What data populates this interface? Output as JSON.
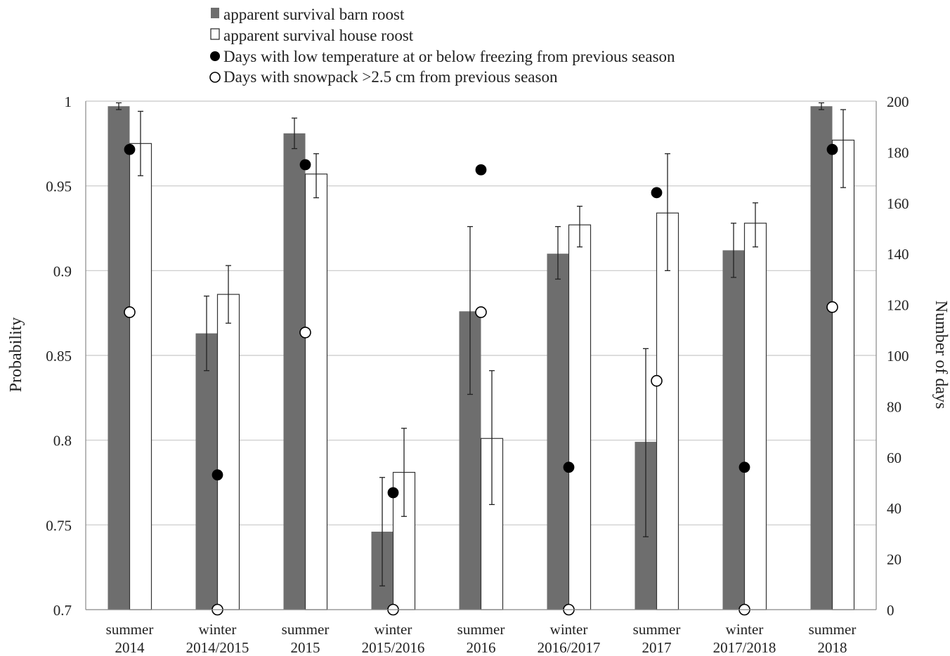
{
  "chart_data": {
    "type": "bar",
    "categories": [
      {
        "line1": "summer",
        "line2": "2014"
      },
      {
        "line1": "winter",
        "line2": "2014/2015"
      },
      {
        "line1": "summer",
        "line2": "2015"
      },
      {
        "line1": "winter",
        "line2": "2015/2016"
      },
      {
        "line1": "summer",
        "line2": "2016"
      },
      {
        "line1": "winter",
        "line2": "2016/2017"
      },
      {
        "line1": "summer",
        "line2": "2017"
      },
      {
        "line1": "winter",
        "line2": "2017/2018"
      },
      {
        "line1": "summer",
        "line2": "2018"
      }
    ],
    "ylabel": "Probability",
    "y2label": "Number of days",
    "ylim": [
      0.7,
      1.0
    ],
    "y2lim": [
      0,
      200
    ],
    "yticks": [
      "0.7",
      "0.75",
      "0.8",
      "0.85",
      "0.9",
      "0.95",
      "1"
    ],
    "y2ticks": [
      "0",
      "20",
      "40",
      "60",
      "80",
      "100",
      "120",
      "140",
      "160",
      "180",
      "200"
    ],
    "grid": true,
    "legend_position": "top",
    "series": [
      {
        "name": "apparent survival barn roost",
        "kind": "bar",
        "color": "#6e6e6e",
        "values": [
          0.997,
          0.863,
          0.981,
          0.746,
          0.876,
          0.91,
          0.799,
          0.912,
          0.997
        ],
        "err_low": [
          0.995,
          0.841,
          0.972,
          0.714,
          0.827,
          0.895,
          0.743,
          0.896,
          0.995
        ],
        "err_high": [
          0.999,
          0.885,
          0.99,
          0.778,
          0.926,
          0.926,
          0.854,
          0.928,
          0.999
        ]
      },
      {
        "name": "apparent survival house roost",
        "kind": "bar",
        "color": "#ffffff",
        "values": [
          0.975,
          0.886,
          0.957,
          0.781,
          0.801,
          0.927,
          0.934,
          0.928,
          0.977
        ],
        "err_low": [
          0.956,
          0.869,
          0.943,
          0.755,
          0.762,
          0.914,
          0.9,
          0.914,
          0.949
        ],
        "err_high": [
          0.994,
          0.903,
          0.969,
          0.807,
          0.841,
          0.938,
          0.969,
          0.94,
          0.995
        ]
      },
      {
        "name": "Days with low temperature at or below freezing from previous season",
        "kind": "point",
        "axis": "right",
        "color": "#000000",
        "values": [
          181,
          53,
          175,
          46,
          173,
          56,
          164,
          56,
          181
        ]
      },
      {
        "name": "Days with snowpack >2.5 cm from previous season",
        "kind": "point",
        "axis": "right",
        "color": "#ffffff",
        "values": [
          117,
          0,
          109,
          0,
          117,
          0,
          90,
          0,
          119
        ]
      }
    ]
  }
}
